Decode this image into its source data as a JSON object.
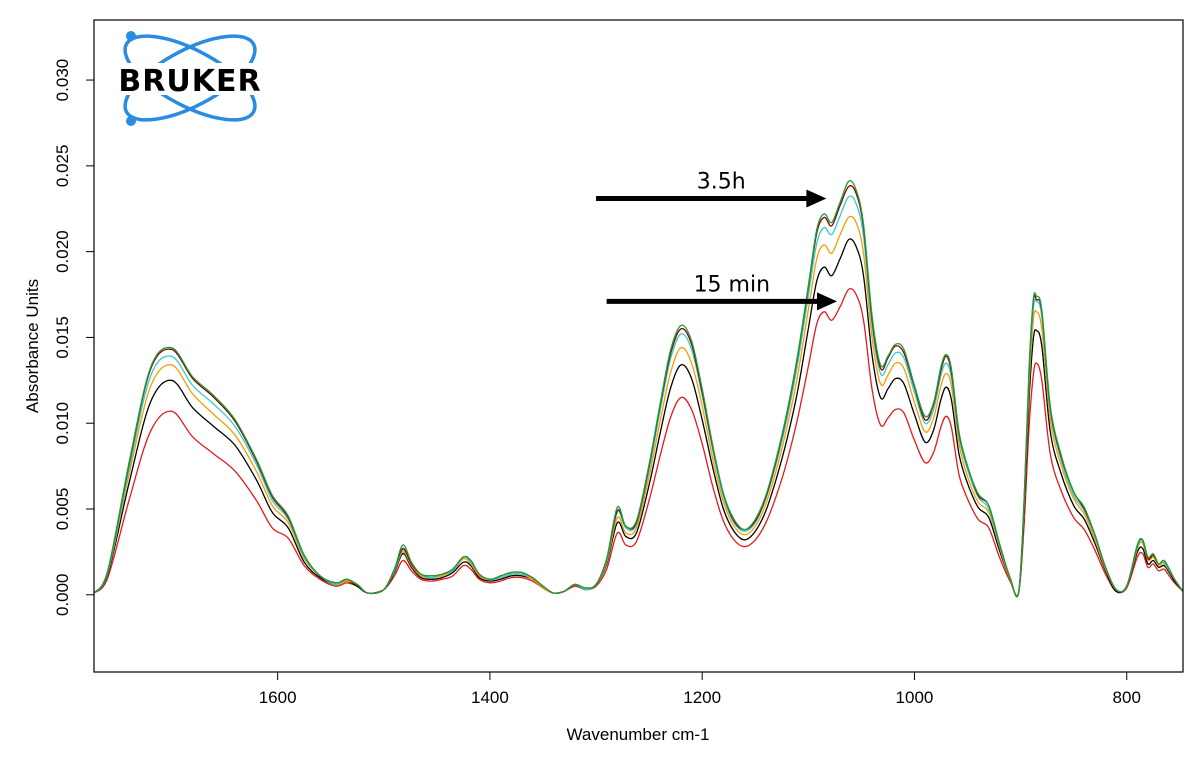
{
  "chart_data": {
    "type": "line",
    "title": "",
    "xlabel": "Wavenumber cm-1",
    "ylabel": "Absorbance Units",
    "xlim": [
      1773,
      747
    ],
    "ylim": [
      -0.0045,
      0.0335
    ],
    "x_reversed": true,
    "x_ticks": [
      "1600",
      "1400",
      "1200",
      "1000",
      "800"
    ],
    "x_tick_values": [
      1600,
      1400,
      1200,
      1000,
      800
    ],
    "y_ticks": [
      "0.000",
      "0.005",
      "0.010",
      "0.015",
      "0.020",
      "0.025",
      "0.030"
    ],
    "y_tick_values": [
      0.0,
      0.005,
      0.01,
      0.015,
      0.02,
      0.025,
      0.03
    ],
    "grid": false,
    "legend": "none",
    "x": [
      1773,
      1760,
      1740,
      1720,
      1700,
      1680,
      1660,
      1640,
      1620,
      1605,
      1590,
      1575,
      1560,
      1545,
      1535,
      1525,
      1515,
      1500,
      1490,
      1482,
      1474,
      1465,
      1455,
      1445,
      1435,
      1425,
      1418,
      1410,
      1400,
      1390,
      1380,
      1370,
      1360,
      1350,
      1340,
      1330,
      1320,
      1310,
      1300,
      1290,
      1280,
      1272,
      1262,
      1250,
      1240,
      1230,
      1220,
      1210,
      1200,
      1190,
      1180,
      1170,
      1160,
      1150,
      1140,
      1130,
      1120,
      1110,
      1100,
      1092,
      1085,
      1078,
      1070,
      1062,
      1055,
      1048,
      1040,
      1032,
      1025,
      1018,
      1010,
      1000,
      990,
      982,
      975,
      970,
      965,
      958,
      950,
      940,
      930,
      920,
      910,
      902,
      897,
      892,
      888,
      885,
      880,
      872,
      862,
      850,
      840,
      830,
      820,
      810,
      800,
      790,
      785,
      780,
      775,
      770,
      765,
      760,
      755,
      747
    ],
    "series": [
      {
        "name": "",
        "color": "#e31a1c",
        "values": [
          0.0001,
          0.001,
          0.0055,
          0.0095,
          0.0107,
          0.0092,
          0.0082,
          0.0072,
          0.0055,
          0.0039,
          0.0033,
          0.0017,
          0.0009,
          0.0005,
          0.0007,
          0.0005,
          0.0001,
          0.0003,
          0.0011,
          0.002,
          0.0014,
          0.0009,
          0.0008,
          0.0009,
          0.0011,
          0.0017,
          0.0015,
          0.0009,
          0.0007,
          0.0008,
          0.001,
          0.001,
          0.0008,
          0.0004,
          0.0001,
          0.0002,
          0.0005,
          0.0003,
          0.0005,
          0.0015,
          0.0036,
          0.0029,
          0.0031,
          0.0055,
          0.008,
          0.0103,
          0.0115,
          0.0108,
          0.0088,
          0.0063,
          0.0043,
          0.0032,
          0.0028,
          0.0032,
          0.0042,
          0.0058,
          0.0078,
          0.0103,
          0.0133,
          0.0158,
          0.0165,
          0.016,
          0.0168,
          0.0178,
          0.0175,
          0.016,
          0.012,
          0.0099,
          0.0103,
          0.0108,
          0.0106,
          0.009,
          0.0077,
          0.0083,
          0.0098,
          0.0104,
          0.0097,
          0.007,
          0.0056,
          0.0044,
          0.0039,
          0.0022,
          0.0008,
          0.0001,
          0.0038,
          0.0098,
          0.0128,
          0.0135,
          0.0125,
          0.0082,
          0.0061,
          0.0045,
          0.0038,
          0.0026,
          0.0012,
          0.0002,
          0.0004,
          0.0022,
          0.0024,
          0.0016,
          0.0018,
          0.0014,
          0.0015,
          0.0011,
          0.0007,
          0.0002
        ]
      },
      {
        "name": "",
        "color": "#000000",
        "values": [
          0.0001,
          0.0012,
          0.0065,
          0.0112,
          0.0125,
          0.0109,
          0.0098,
          0.0087,
          0.0067,
          0.0048,
          0.0039,
          0.0019,
          0.001,
          0.0006,
          0.0008,
          0.0005,
          0.0001,
          0.0003,
          0.0013,
          0.0024,
          0.0016,
          0.001,
          0.0009,
          0.001,
          0.0013,
          0.0019,
          0.0017,
          0.001,
          0.0008,
          0.0009,
          0.0011,
          0.0011,
          0.0009,
          0.0004,
          0.0001,
          0.0002,
          0.0006,
          0.0003,
          0.0006,
          0.0018,
          0.0042,
          0.0034,
          0.0036,
          0.0064,
          0.0093,
          0.012,
          0.0134,
          0.0126,
          0.0102,
          0.0074,
          0.005,
          0.0037,
          0.0032,
          0.0037,
          0.0049,
          0.0068,
          0.0091,
          0.0119,
          0.0155,
          0.0183,
          0.0191,
          0.0186,
          0.0196,
          0.0207,
          0.0203,
          0.0186,
          0.014,
          0.0115,
          0.012,
          0.0126,
          0.0123,
          0.0105,
          0.0089,
          0.0096,
          0.0114,
          0.0121,
          0.0113,
          0.0082,
          0.0065,
          0.0051,
          0.0045,
          0.0026,
          0.0009,
          0.0001,
          0.0044,
          0.0114,
          0.0149,
          0.0154,
          0.0145,
          0.0095,
          0.0071,
          0.0052,
          0.0044,
          0.003,
          0.0014,
          0.0002,
          0.0005,
          0.0025,
          0.0027,
          0.0018,
          0.002,
          0.0016,
          0.0017,
          0.0013,
          0.0008,
          0.0002
        ]
      },
      {
        "name": "",
        "color": "#ff9900",
        "values": [
          0.0001,
          0.0013,
          0.007,
          0.0121,
          0.0134,
          0.0117,
          0.0105,
          0.0093,
          0.0072,
          0.0052,
          0.0042,
          0.0021,
          0.0011,
          0.0006,
          0.0008,
          0.0006,
          0.0001,
          0.0003,
          0.0014,
          0.0025,
          0.0017,
          0.0011,
          0.001,
          0.0011,
          0.0014,
          0.0021,
          0.0018,
          0.0011,
          0.0009,
          0.001,
          0.0012,
          0.0012,
          0.0009,
          0.0004,
          0.0001,
          0.0002,
          0.0006,
          0.0003,
          0.0006,
          0.0019,
          0.0045,
          0.0036,
          0.0039,
          0.0069,
          0.01,
          0.0129,
          0.0144,
          0.0135,
          0.011,
          0.0079,
          0.0054,
          0.004,
          0.0035,
          0.004,
          0.0053,
          0.0073,
          0.0098,
          0.0128,
          0.0166,
          0.0196,
          0.0204,
          0.0199,
          0.021,
          0.022,
          0.0217,
          0.0199,
          0.015,
          0.0123,
          0.0128,
          0.0135,
          0.0132,
          0.0112,
          0.0095,
          0.0103,
          0.0122,
          0.0129,
          0.0121,
          0.0088,
          0.0069,
          0.0054,
          0.0048,
          0.0028,
          0.0009,
          0.0001,
          0.0047,
          0.0122,
          0.016,
          0.0165,
          0.0155,
          0.0102,
          0.0076,
          0.0056,
          0.0047,
          0.0032,
          0.0015,
          0.0003,
          0.0005,
          0.0027,
          0.003,
          0.002,
          0.0022,
          0.0017,
          0.0018,
          0.0014,
          0.0009,
          0.0002
        ]
      },
      {
        "name": "",
        "color": "#33cccc",
        "values": [
          0.0001,
          0.0013,
          0.0073,
          0.0127,
          0.0139,
          0.0122,
          0.0111,
          0.0098,
          0.0076,
          0.0055,
          0.0044,
          0.0022,
          0.0011,
          0.0006,
          0.0009,
          0.0006,
          0.0001,
          0.0003,
          0.0014,
          0.0026,
          0.0018,
          0.0012,
          0.001,
          0.0012,
          0.0014,
          0.0022,
          0.0019,
          0.0012,
          0.0009,
          0.001,
          0.0012,
          0.0012,
          0.001,
          0.0005,
          0.0001,
          0.0002,
          0.0006,
          0.0003,
          0.0006,
          0.002,
          0.0048,
          0.0039,
          0.0041,
          0.0073,
          0.0106,
          0.0137,
          0.0152,
          0.0143,
          0.0116,
          0.0084,
          0.0057,
          0.0042,
          0.0037,
          0.0042,
          0.0056,
          0.0077,
          0.0103,
          0.0135,
          0.0174,
          0.0205,
          0.0214,
          0.021,
          0.0221,
          0.0232,
          0.0228,
          0.0209,
          0.0157,
          0.0129,
          0.0134,
          0.0141,
          0.0138,
          0.0118,
          0.01,
          0.0108,
          0.0128,
          0.0135,
          0.0126,
          0.0092,
          0.0073,
          0.0057,
          0.005,
          0.0029,
          0.001,
          0.0001,
          0.0049,
          0.0128,
          0.0167,
          0.0171,
          0.0162,
          0.0107,
          0.0079,
          0.0058,
          0.0049,
          0.0034,
          0.0016,
          0.0003,
          0.0005,
          0.0028,
          0.0031,
          0.0021,
          0.0023,
          0.0018,
          0.0019,
          0.0014,
          0.0009,
          0.0002
        ]
      },
      {
        "name": "",
        "color": "#8b0000",
        "values": [
          0.0001,
          0.0014,
          0.0076,
          0.0131,
          0.0143,
          0.0126,
          0.0115,
          0.0101,
          0.0078,
          0.0057,
          0.0045,
          0.0023,
          0.0011,
          0.0007,
          0.0009,
          0.0006,
          0.0001,
          0.0003,
          0.0015,
          0.0027,
          0.0018,
          0.0012,
          0.0011,
          0.0012,
          0.0015,
          0.0022,
          0.002,
          0.0012,
          0.0009,
          0.0011,
          0.0013,
          0.0013,
          0.001,
          0.0005,
          0.0001,
          0.0002,
          0.0006,
          0.0004,
          0.0006,
          0.0021,
          0.0049,
          0.004,
          0.0042,
          0.0075,
          0.0109,
          0.014,
          0.0155,
          0.0146,
          0.0118,
          0.0086,
          0.0059,
          0.0043,
          0.0038,
          0.0043,
          0.0057,
          0.0079,
          0.0106,
          0.0139,
          0.0179,
          0.0211,
          0.022,
          0.0215,
          0.0227,
          0.0238,
          0.0234,
          0.0214,
          0.0161,
          0.0132,
          0.0138,
          0.0145,
          0.0141,
          0.0121,
          0.0102,
          0.0111,
          0.0131,
          0.0139,
          0.0129,
          0.0094,
          0.0075,
          0.0058,
          0.0052,
          0.003,
          0.001,
          0.0001,
          0.005,
          0.0131,
          0.0171,
          0.0172,
          0.0165,
          0.0109,
          0.0081,
          0.006,
          0.005,
          0.0035,
          0.0016,
          0.0003,
          0.0005,
          0.0029,
          0.0032,
          0.0021,
          0.0023,
          0.0018,
          0.002,
          0.0015,
          0.0009,
          0.0002
        ]
      },
      {
        "name": "",
        "color": "#1f9e3a",
        "values": [
          0.0001,
          0.0014,
          0.0077,
          0.0132,
          0.0144,
          0.0127,
          0.0116,
          0.0102,
          0.0079,
          0.0058,
          0.0046,
          0.0023,
          0.0011,
          0.0007,
          0.0009,
          0.0006,
          0.0001,
          0.0003,
          0.0015,
          0.0029,
          0.0019,
          0.0012,
          0.0011,
          0.0012,
          0.0015,
          0.0022,
          0.002,
          0.0012,
          0.0009,
          0.0011,
          0.0013,
          0.0013,
          0.001,
          0.0005,
          0.0001,
          0.0002,
          0.0006,
          0.0004,
          0.0006,
          0.0021,
          0.0051,
          0.004,
          0.0043,
          0.0076,
          0.011,
          0.0142,
          0.0157,
          0.0148,
          0.012,
          0.0087,
          0.0059,
          0.0044,
          0.0038,
          0.0044,
          0.0058,
          0.008,
          0.0107,
          0.014,
          0.018,
          0.0213,
          0.0222,
          0.0217,
          0.0229,
          0.0241,
          0.0236,
          0.0216,
          0.0163,
          0.0134,
          0.0139,
          0.0146,
          0.0143,
          0.0122,
          0.0104,
          0.0112,
          0.0133,
          0.014,
          0.0131,
          0.0095,
          0.0075,
          0.0059,
          0.0052,
          0.003,
          0.001,
          0.0001,
          0.0051,
          0.0132,
          0.0172,
          0.0174,
          0.0166,
          0.011,
          0.0082,
          0.006,
          0.0051,
          0.0035,
          0.0016,
          0.0003,
          0.0005,
          0.0029,
          0.0032,
          0.0022,
          0.0024,
          0.0018,
          0.002,
          0.0015,
          0.0009,
          0.0002
        ]
      }
    ],
    "annotations": [
      {
        "text": "3.5h",
        "x_from": 1300,
        "x_to": 1083,
        "y": 0.0231
      },
      {
        "text": "15 min",
        "x_from": 1290,
        "x_to": 1073,
        "y": 0.0171
      }
    ],
    "logo": {
      "text": "BRUKER",
      "color": "#2b8be0"
    }
  }
}
